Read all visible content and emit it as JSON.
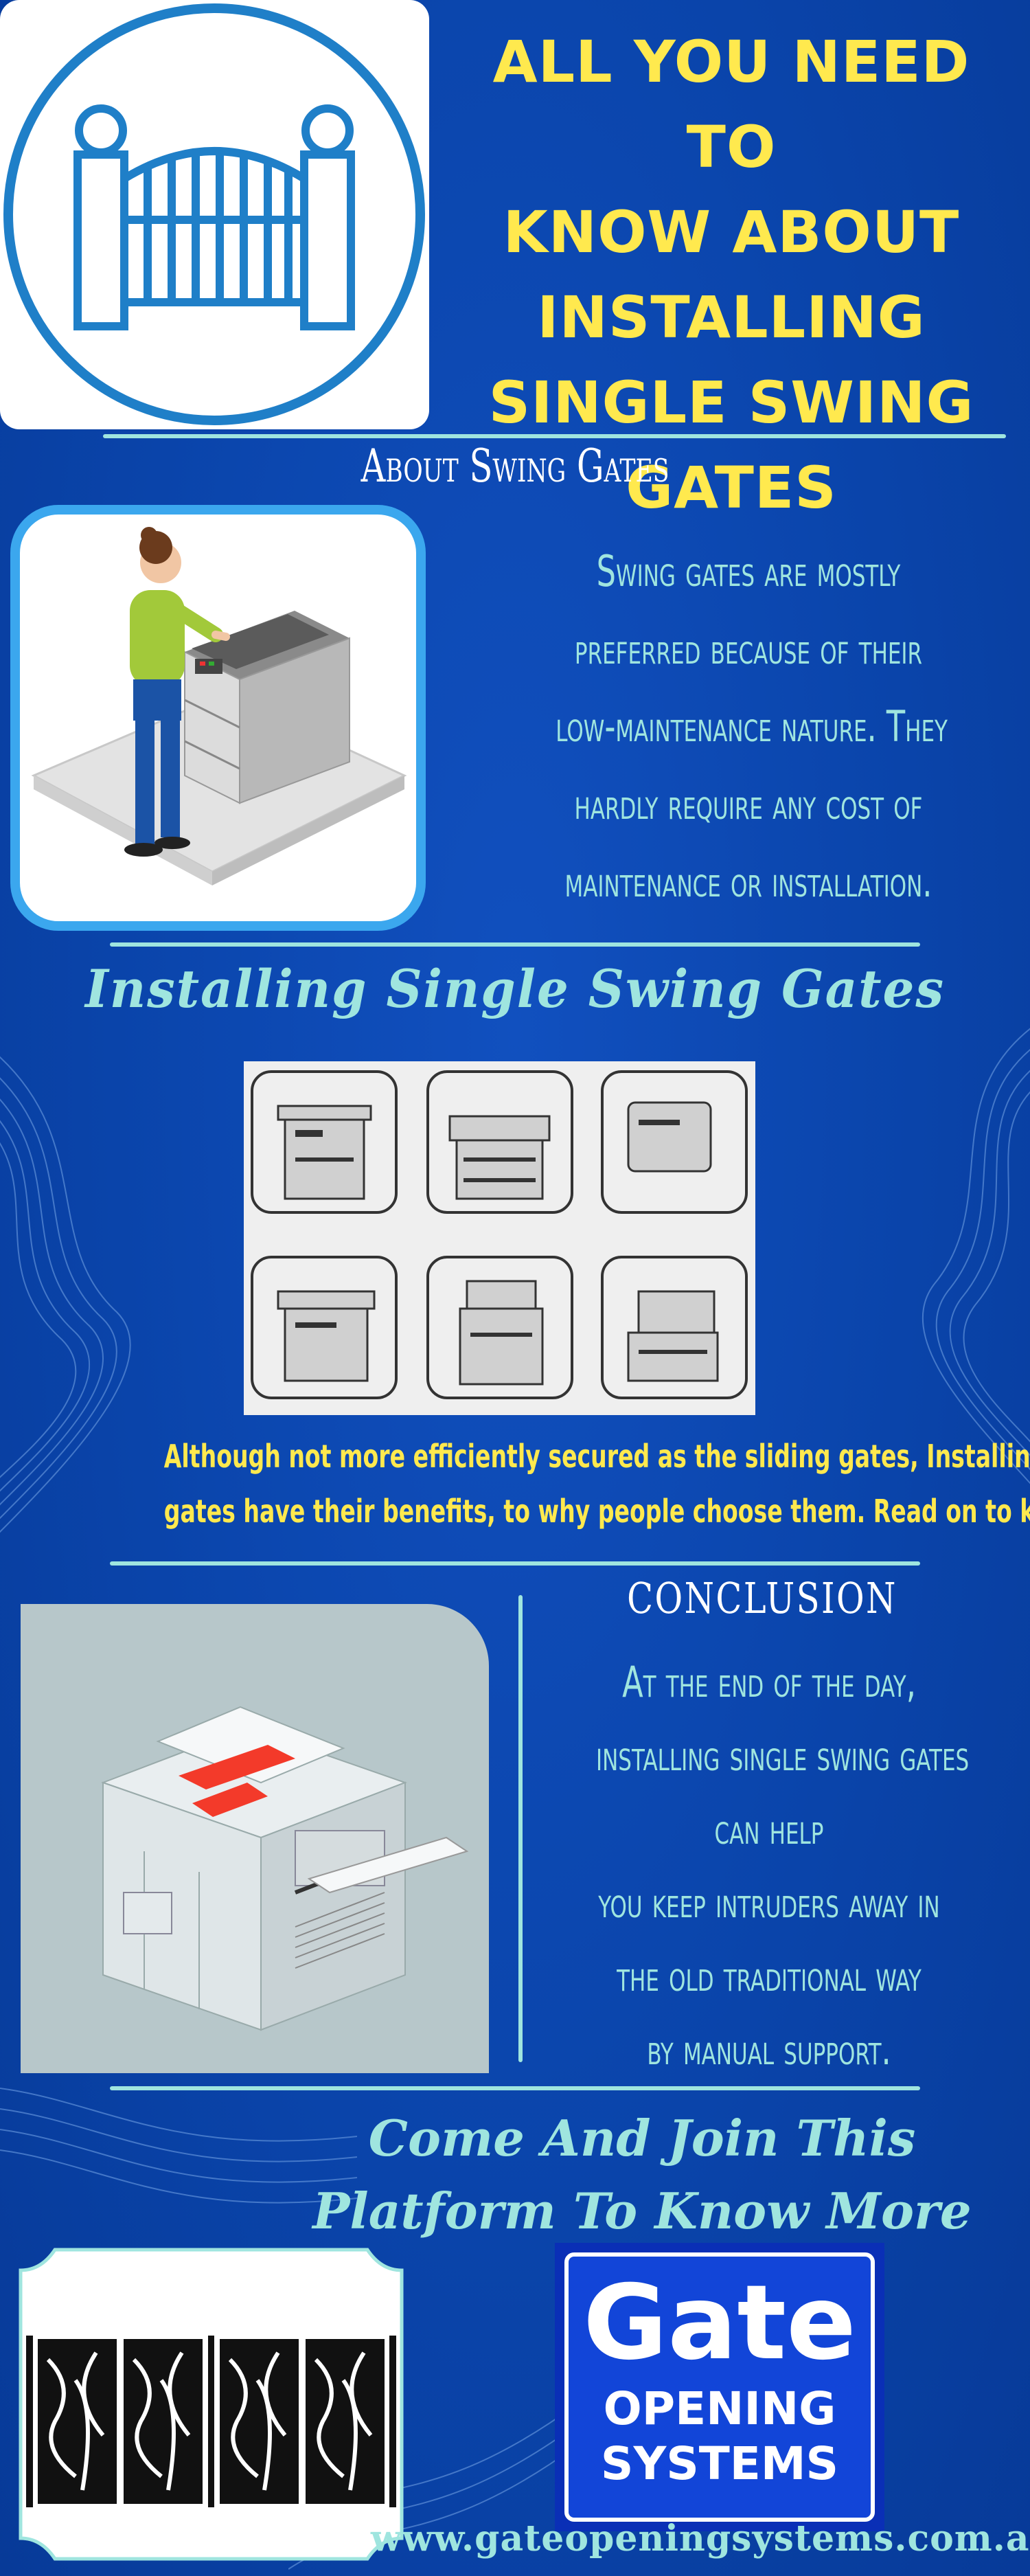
{
  "title": {
    "lines": [
      "ALL YOU NEED TO",
      "KNOW ABOUT",
      "INSTALLING",
      "SINGLE SWING",
      "GATES"
    ]
  },
  "about": {
    "heading": "About Swing Gates",
    "lines": [
      "Swing gates are mostly",
      "preferred because of their",
      "low-maintenance nature. They",
      "hardly require any cost of",
      "maintenance or installation."
    ]
  },
  "installing": {
    "heading": "Installing Single Swing Gates",
    "lines": [
      "Although not more efficiently secured as the sliding gates, Installing single swing",
      "gates have their benefits, to why people choose them. Read on to know further."
    ]
  },
  "conclusion": {
    "heading": "CONCLUSION",
    "lines": [
      "At the end of the day,",
      "installing single swing gates",
      "can help",
      "you keep intruders away in",
      "the old traditional way",
      "by manual support."
    ]
  },
  "join": {
    "lines": [
      "Come And Join This",
      "Platform To Know More"
    ]
  },
  "logo": {
    "word1": "Gate",
    "word2": "OPENING",
    "word3": "SYSTEMS"
  },
  "footer": {
    "url": "www.gateopeningsystems.com.au"
  },
  "colors": {
    "background": "#0b44a8",
    "title_yellow": "#ffe94e",
    "accent_mint": "#9fe5df",
    "logo_blue": "#1245d8"
  },
  "icons": [
    "gate-icon",
    "woman-copier-illustration",
    "copier-grid-illustration",
    "office-copier-illustration",
    "decorative-gate-panel",
    "company-logo"
  ]
}
